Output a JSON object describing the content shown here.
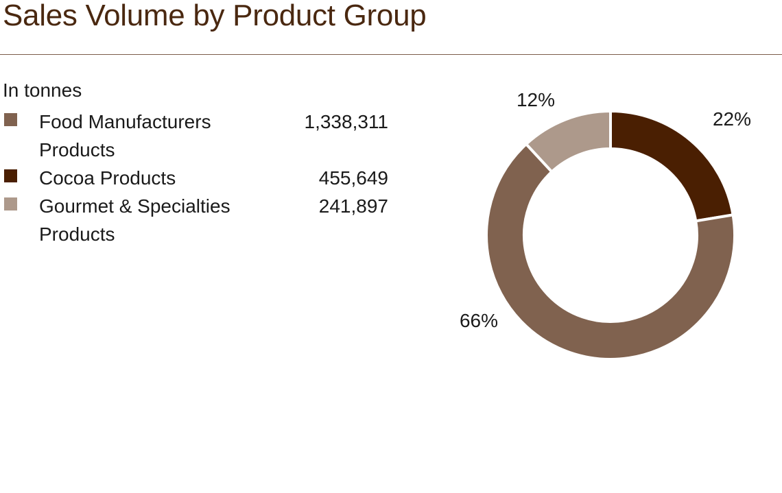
{
  "title": "Sales Volume by Product Group",
  "unit_label": "In tonnes",
  "chart_data": {
    "type": "pie",
    "variant": "donut",
    "title": "Sales Volume by Product Group",
    "unit": "In tonnes",
    "categories": [
      "Food Manufacturers Products",
      "Cocoa Products",
      "Gourmet & Specialties Products"
    ],
    "values": [
      1338311,
      455649,
      241897
    ],
    "value_labels": [
      "1,338,311",
      "455,649",
      "241,897"
    ],
    "percent_labels": [
      "66%",
      "22%",
      "12%"
    ],
    "colors": [
      "#80624f",
      "#4a1f02",
      "#ad998b"
    ],
    "legend_position": "left"
  },
  "legend": [
    {
      "label": "Food Manufacturers Products",
      "value": "1,338,311",
      "color": "#80624f"
    },
    {
      "label": "Cocoa Products",
      "value": "455,649",
      "color": "#4a1f02"
    },
    {
      "label": "Gourmet & Specialties Products",
      "value": "241,897",
      "color": "#ad998b"
    }
  ]
}
